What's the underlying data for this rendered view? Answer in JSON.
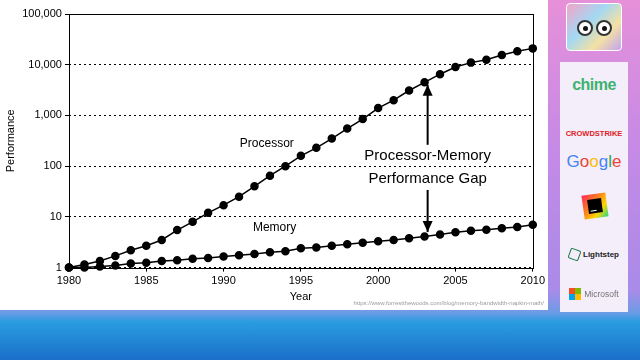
{
  "chart_data": {
    "type": "line",
    "x_label": "Year",
    "y_label": "Performance",
    "x": [
      1980,
      1981,
      1982,
      1983,
      1984,
      1985,
      1986,
      1987,
      1988,
      1989,
      1990,
      1991,
      1992,
      1993,
      1994,
      1995,
      1996,
      1997,
      1998,
      1999,
      2000,
      2001,
      2002,
      2003,
      2004,
      2005,
      2006,
      2007,
      2008,
      2009,
      2010
    ],
    "series": [
      {
        "name": "Processor",
        "color": "#000000",
        "marker": "circle",
        "line_style": "solid",
        "values": [
          1,
          1.15,
          1.35,
          1.7,
          2.2,
          2.7,
          3.5,
          5.5,
          8,
          12,
          17,
          25,
          40,
          65,
          100,
          160,
          230,
          350,
          550,
          850,
          1400,
          2000,
          3100,
          4500,
          6500,
          9000,
          11000,
          12500,
          15500,
          18500,
          21000
        ]
      },
      {
        "name": "Memory",
        "color": "#000000",
        "marker": "circle",
        "line_style": "solid",
        "values": [
          1,
          1.0,
          1.05,
          1.1,
          1.2,
          1.25,
          1.35,
          1.4,
          1.5,
          1.55,
          1.65,
          1.75,
          1.85,
          2.0,
          2.1,
          2.4,
          2.5,
          2.7,
          2.9,
          3.1,
          3.3,
          3.5,
          3.8,
          4.1,
          4.5,
          5.0,
          5.3,
          5.6,
          6.0,
          6.3,
          7.0
        ]
      }
    ],
    "xlim": [
      1980,
      2010
    ],
    "xticks": [
      1980,
      1985,
      1990,
      1995,
      2000,
      2005,
      2010
    ],
    "ylim": [
      1,
      100000
    ],
    "yticks": [
      1,
      10,
      100,
      {
        "value": 1000,
        "label": "1,000"
      },
      {
        "value": 10000,
        "label": "10,000"
      },
      {
        "value": 100000,
        "label": "100,000"
      }
    ],
    "log": "y",
    "grid": true,
    "annotations": [
      "Processor-Memory Performance Gap"
    ],
    "source": "https://www.forrestthewoods.com/blog/memory-bandwidth-napkin-math/"
  },
  "sidebar": [
    "chime",
    "CROWDSTRIKE",
    "Google",
    "Lightstep",
    "Microsoft"
  ]
}
